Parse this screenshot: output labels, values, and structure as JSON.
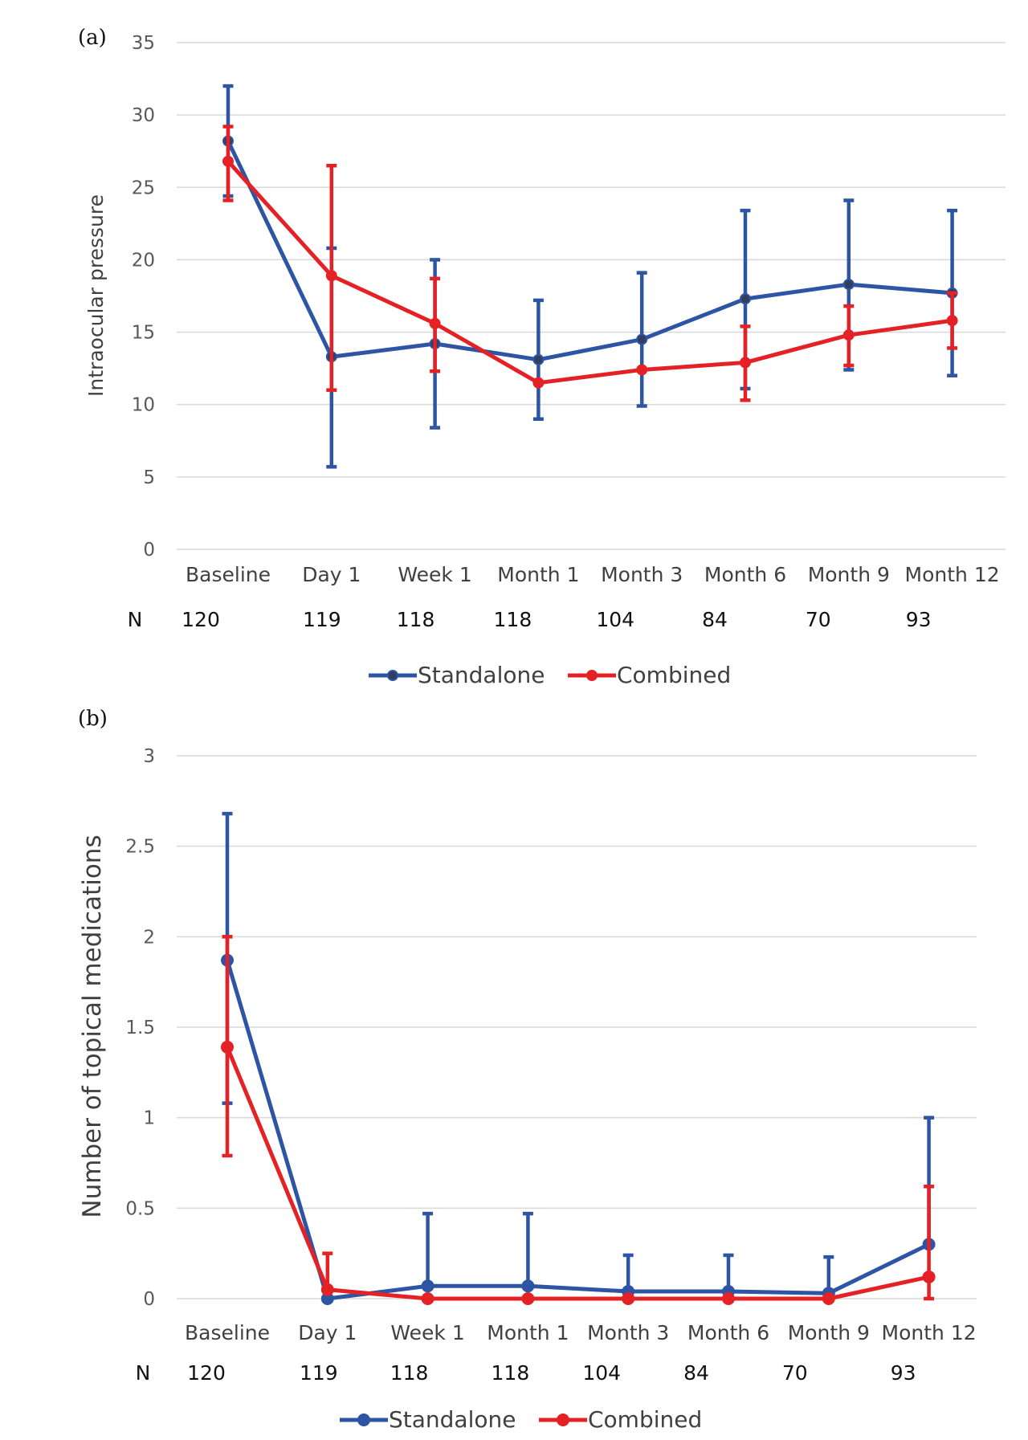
{
  "chart_data": [
    {
      "type": "line",
      "panel_label": "(a)",
      "ylabel": "Intraocular pressure",
      "ylim": [
        0,
        35
      ],
      "yticks": [
        "0",
        "5",
        "10",
        "15",
        "20",
        "25",
        "30",
        "35"
      ],
      "categories": [
        "Baseline",
        "Day 1",
        "Week 1",
        "Month 1",
        "Month 3",
        "Month 6",
        "Month 9",
        "Month 12"
      ],
      "n_label": "N",
      "n_values": [
        "120",
        "119",
        "118",
        "118",
        "104",
        "84",
        "70",
        "93"
      ],
      "grid": true,
      "legend": "bottom",
      "series": [
        {
          "name": "Standalone",
          "color": "#2e54a4",
          "values": [
            28.2,
            13.3,
            14.2,
            13.1,
            14.5,
            17.3,
            18.3,
            17.7
          ],
          "error_low": [
            24.4,
            5.7,
            8.4,
            9.0,
            9.9,
            11.1,
            12.4,
            12.0
          ],
          "error_high": [
            32.0,
            20.8,
            20.0,
            17.2,
            19.1,
            23.4,
            24.1,
            23.4
          ]
        },
        {
          "name": "Combined",
          "color": "#e42226",
          "values": [
            26.8,
            18.9,
            15.6,
            11.5,
            12.4,
            12.9,
            14.8,
            15.8
          ],
          "error_low": [
            24.1,
            11.0,
            12.3,
            9.4,
            10.1,
            10.3,
            12.7,
            13.9
          ],
          "error_high": [
            29.2,
            26.5,
            18.7,
            9.4,
            10.1,
            15.4,
            16.8,
            17.7
          ]
        }
      ]
    },
    {
      "type": "line",
      "panel_label": "(b)",
      "ylabel": "Number of topical medications",
      "ylim": [
        0,
        3
      ],
      "yticks": [
        "0",
        "0.5",
        "1",
        "1.5",
        "2",
        "2.5",
        "3"
      ],
      "categories": [
        "Baseline",
        "Day 1",
        "Week 1",
        "Month 1",
        "Month 3",
        "Month 6",
        "Month 9",
        "Month 12"
      ],
      "n_label": "N",
      "n_values": [
        "120",
        "119",
        "118",
        "118",
        "104",
        "84",
        "70",
        "93"
      ],
      "grid": true,
      "legend": "bottom",
      "series": [
        {
          "name": "Standalone",
          "color": "#2e54a4",
          "values": [
            1.87,
            0.0,
            0.07,
            0.07,
            0.04,
            0.04,
            0.03,
            0.3
          ],
          "error_low": [
            1.08,
            0.0,
            0.07,
            0.07,
            0.04,
            0.04,
            0.03,
            0.3
          ],
          "error_high": [
            2.68,
            0.0,
            0.47,
            0.47,
            0.24,
            0.24,
            0.23,
            1.0
          ]
        },
        {
          "name": "Combined",
          "color": "#e42226",
          "values": [
            1.39,
            0.05,
            0.0,
            0.0,
            0.0,
            0.0,
            0.0,
            0.12
          ],
          "error_low": [
            0.79,
            0.05,
            0.0,
            0.0,
            0.0,
            0.0,
            0.0,
            0.0
          ],
          "error_high": [
            2.0,
            0.25,
            0.0,
            0.0,
            0.0,
            0.0,
            0.0,
            0.62
          ]
        }
      ]
    }
  ]
}
